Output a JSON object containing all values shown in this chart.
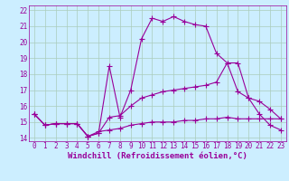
{
  "background_color": "#cceeff",
  "grid_color": "#aaccbb",
  "line_color": "#990099",
  "marker": "+",
  "markersize": 4,
  "linewidth": 0.8,
  "xlabel": "Windchill (Refroidissement éolien,°C)",
  "xlabel_fontsize": 6.5,
  "xtick_fontsize": 5.5,
  "ytick_fontsize": 5.5,
  "xlim": [
    -0.5,
    23.5
  ],
  "ylim": [
    13.8,
    22.3
  ],
  "yticks": [
    14,
    15,
    16,
    17,
    18,
    19,
    20,
    21,
    22
  ],
  "xticks": [
    0,
    1,
    2,
    3,
    4,
    5,
    6,
    7,
    8,
    9,
    10,
    11,
    12,
    13,
    14,
    15,
    16,
    17,
    18,
    19,
    20,
    21,
    22,
    23
  ],
  "series": [
    {
      "x": [
        0,
        1,
        2,
        3,
        4,
        5,
        6,
        7,
        8,
        9,
        10,
        11,
        12,
        13,
        14,
        15,
        16,
        17,
        18,
        19,
        20,
        21,
        22,
        23
      ],
      "y": [
        15.5,
        14.8,
        14.9,
        14.9,
        14.9,
        14.1,
        14.4,
        14.5,
        14.6,
        14.8,
        14.9,
        15.0,
        15.0,
        15.0,
        15.1,
        15.1,
        15.2,
        15.2,
        15.3,
        15.2,
        15.2,
        15.2,
        15.2,
        15.2
      ]
    },
    {
      "x": [
        0,
        1,
        2,
        3,
        4,
        5,
        6,
        7,
        8,
        9,
        10,
        11,
        12,
        13,
        14,
        15,
        16,
        17,
        18,
        19,
        20,
        21,
        22,
        23
      ],
      "y": [
        15.5,
        14.8,
        14.9,
        14.9,
        14.9,
        14.1,
        14.3,
        15.3,
        15.4,
        16.0,
        16.5,
        16.7,
        16.9,
        17.0,
        17.1,
        17.2,
        17.3,
        17.5,
        18.7,
        16.9,
        16.5,
        16.3,
        15.8,
        15.2
      ]
    },
    {
      "x": [
        0,
        1,
        2,
        3,
        4,
        5,
        6,
        7,
        8,
        9,
        10,
        11,
        12,
        13,
        14,
        15,
        16,
        17,
        18,
        19,
        20,
        21,
        22,
        23
      ],
      "y": [
        15.5,
        14.8,
        14.9,
        14.9,
        14.9,
        14.1,
        14.3,
        18.5,
        15.3,
        17.0,
        20.2,
        21.5,
        21.3,
        21.6,
        21.3,
        21.1,
        21.0,
        19.3,
        18.7,
        18.7,
        16.5,
        15.5,
        14.8,
        14.5
      ]
    }
  ]
}
